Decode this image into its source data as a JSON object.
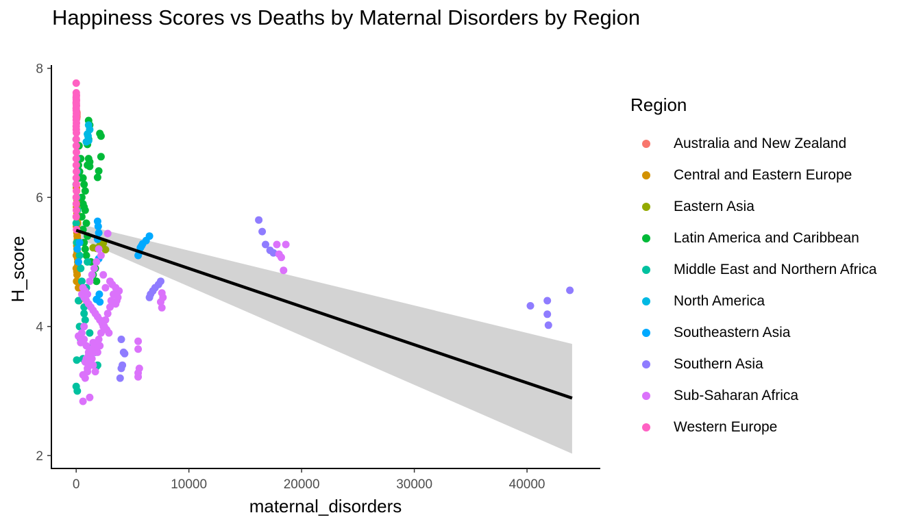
{
  "chart_data": {
    "type": "scatter",
    "title": "Happiness Scores vs Deaths by Maternal Disorders by Region",
    "xlabel": "maternal_disorders",
    "ylabel": "H_score",
    "xlim": [
      -2200,
      46500
    ],
    "ylim": [
      1.8,
      8.05
    ],
    "xticks": [
      0,
      10000,
      20000,
      30000,
      40000
    ],
    "yticks": [
      2,
      4,
      6,
      8
    ],
    "grid": false,
    "legend_title": "Region",
    "legend_position": "right",
    "trend": {
      "type": "linear",
      "x": [
        0,
        44000
      ],
      "y": [
        5.49,
        2.89
      ],
      "band_lower": [
        5.38,
        2.03
      ],
      "band_upper": [
        5.6,
        3.73
      ],
      "color": "#000000",
      "band_color": "#d3d3d3"
    },
    "series": [
      {
        "name": "Australia and New Zealand",
        "color": "#F8766D",
        "x": [
          60,
          70,
          40,
          55,
          45,
          65
        ],
        "y": [
          7.28,
          7.31,
          7.33,
          7.29,
          7.22,
          7.25
        ]
      },
      {
        "name": "Central and Eastern Europe",
        "color": "#D39200",
        "x": [
          20,
          40,
          60,
          80,
          100,
          30,
          50,
          70,
          90,
          110,
          120,
          25,
          45,
          65,
          85,
          105,
          35,
          55,
          75,
          95,
          15,
          130,
          140,
          150,
          10,
          60,
          80,
          40,
          200,
          250
        ],
        "y": [
          6.15,
          6.1,
          6.0,
          5.95,
          5.9,
          5.85,
          5.8,
          5.75,
          5.7,
          5.65,
          5.6,
          5.55,
          5.5,
          5.45,
          5.4,
          5.35,
          5.3,
          5.25,
          5.2,
          5.15,
          5.1,
          5.05,
          5.0,
          4.95,
          4.9,
          4.85,
          4.8,
          4.7,
          4.6,
          4.4
        ]
      },
      {
        "name": "Eastern Asia",
        "color": "#93AA00",
        "x": [
          1800,
          2100,
          2400,
          2600,
          1500,
          50
        ],
        "y": [
          5.21,
          5.25,
          5.29,
          5.19,
          5.22,
          5.98
        ]
      },
      {
        "name": "Latin America and Caribbean",
        "color": "#00BA38",
        "x": [
          1100,
          1200,
          2100,
          2200,
          1000,
          1100,
          1200,
          2200,
          2000,
          1900,
          1000,
          1200,
          1100,
          600,
          700,
          800,
          500,
          600,
          700,
          800,
          500,
          900,
          600,
          1000,
          700,
          800,
          900,
          1300,
          1700,
          1500,
          1800,
          200,
          300,
          400,
          250,
          350
        ],
        "y": [
          7.19,
          7.12,
          6.99,
          6.95,
          6.82,
          6.6,
          6.55,
          6.63,
          6.41,
          6.31,
          6.5,
          6.48,
          6.9,
          6.3,
          6.2,
          6.1,
          6.0,
          5.9,
          5.85,
          5.8,
          5.7,
          5.6,
          5.5,
          5.4,
          5.3,
          5.2,
          5.1,
          5.0,
          4.9,
          4.8,
          4.7,
          6.5,
          6.4,
          6.6,
          6.8,
          6.3
        ]
      },
      {
        "name": "Middle East and Northern Africa",
        "color": "#00C19F",
        "x": [
          0,
          50,
          100,
          0,
          50,
          100,
          0,
          50,
          300,
          400,
          500,
          600,
          700,
          800,
          1200,
          1500,
          1700,
          1900,
          1800,
          600,
          700,
          900,
          1000,
          200,
          300,
          400,
          50,
          0,
          100
        ],
        "y": [
          6.9,
          6.6,
          6.4,
          6.2,
          6.0,
          5.8,
          5.6,
          5.3,
          5.1,
          4.9,
          4.7,
          4.5,
          4.3,
          4.1,
          3.9,
          3.7,
          3.6,
          3.4,
          3.38,
          3.5,
          4.2,
          4.6,
          5.0,
          4.4,
          4.0,
          3.8,
          3.48,
          3.07,
          3.0
        ]
      },
      {
        "name": "North America",
        "color": "#00B9E3",
        "x": [
          1100,
          1200,
          1000,
          1100,
          900,
          1050
        ],
        "y": [
          7.12,
          7.05,
          6.98,
          6.88,
          6.86,
          6.95
        ]
      },
      {
        "name": "Southeastern Asia",
        "color": "#00A9FF",
        "x": [
          1900,
          1950,
          2000,
          1900,
          6500,
          6200,
          5900,
          5700,
          5500,
          5600,
          5800,
          2000,
          2100,
          1800,
          2050,
          100,
          200,
          300
        ],
        "y": [
          5.63,
          5.55,
          5.45,
          5.35,
          5.4,
          5.33,
          5.28,
          5.22,
          5.1,
          5.15,
          5.25,
          5.05,
          4.38,
          4.42,
          4.5,
          5.2,
          5.0,
          5.3
        ]
      },
      {
        "name": "Southern Asia",
        "color": "#8F7CFF",
        "x": [
          16200,
          16500,
          16800,
          17200,
          17500,
          40300,
          41800,
          41800,
          41900,
          43800,
          7500,
          7300,
          7000,
          6800,
          6600,
          6500,
          4000,
          4200,
          4300,
          4100,
          4000,
          3900
        ],
        "y": [
          5.65,
          5.47,
          5.27,
          5.18,
          5.14,
          4.32,
          4.4,
          4.19,
          4.02,
          4.56,
          4.7,
          4.65,
          4.6,
          4.55,
          4.5,
          4.45,
          3.8,
          3.6,
          3.58,
          3.4,
          3.35,
          3.2
        ]
      },
      {
        "name": "Sub-Saharan Africa",
        "color": "#DB72FB",
        "x": [
          2800,
          17800,
          18000,
          18200,
          18600,
          18400,
          7600,
          7700,
          7500,
          7600,
          5500,
          5500,
          5600,
          5500,
          5500,
          3000,
          3200,
          3500,
          3800,
          3600,
          3000,
          2800,
          2600,
          2400,
          2200,
          2000,
          1800,
          1600,
          1400,
          1200,
          1000,
          800,
          600,
          400,
          200,
          500,
          700,
          900,
          1100,
          1300,
          1500,
          1700,
          1900,
          2100,
          2300,
          2500,
          2700,
          2900,
          3100,
          3300,
          3500,
          3700,
          600,
          800,
          1000,
          1200,
          1400,
          1600,
          1800,
          2000,
          2200,
          2400,
          2600,
          500,
          700,
          900,
          1100,
          1300,
          1500,
          1700,
          1900,
          2100,
          700,
          900,
          1100,
          1300,
          1500,
          800,
          1000,
          600,
          1200
        ],
        "y": [
          5.44,
          5.27,
          5.12,
          5.07,
          5.27,
          4.87,
          4.52,
          4.45,
          4.38,
          4.29,
          3.77,
          3.65,
          3.35,
          3.28,
          3.22,
          4.7,
          4.65,
          4.6,
          4.55,
          4.4,
          4.3,
          4.2,
          4.1,
          4.0,
          3.9,
          3.8,
          3.7,
          3.6,
          3.5,
          3.4,
          3.3,
          3.2,
          2.84,
          3.75,
          3.85,
          4.5,
          4.45,
          4.4,
          4.35,
          4.3,
          4.25,
          4.2,
          4.15,
          4.1,
          4.05,
          4.0,
          3.95,
          3.9,
          4.4,
          4.5,
          4.35,
          4.45,
          4.6,
          4.55,
          4.5,
          4.7,
          4.8,
          4.9,
          5.0,
          5.2,
          5.1,
          4.8,
          4.6,
          3.9,
          3.8,
          3.7,
          3.6,
          3.5,
          3.4,
          3.3,
          3.6,
          3.7,
          4.0,
          3.5,
          3.55,
          3.65,
          3.75,
          3.45,
          3.35,
          3.25,
          2.9
        ]
      },
      {
        "name": "Western Europe",
        "color": "#FF61C3",
        "x": [
          0,
          10,
          20,
          0,
          10,
          20,
          0,
          10,
          20,
          0,
          10,
          20,
          0,
          10,
          20,
          0,
          10,
          20,
          0,
          10,
          20,
          0,
          10,
          20,
          0,
          10,
          20,
          0,
          10,
          20,
          0,
          30
        ],
        "y": [
          7.77,
          7.62,
          7.58,
          7.55,
          7.52,
          7.5,
          7.47,
          7.45,
          7.42,
          7.38,
          7.35,
          7.3,
          7.25,
          7.2,
          7.15,
          7.1,
          7.05,
          7.0,
          6.9,
          6.8,
          6.7,
          6.6,
          6.5,
          6.4,
          6.3,
          6.2,
          6.1,
          6.0,
          5.9,
          5.8,
          5.7,
          5.5
        ]
      }
    ]
  }
}
